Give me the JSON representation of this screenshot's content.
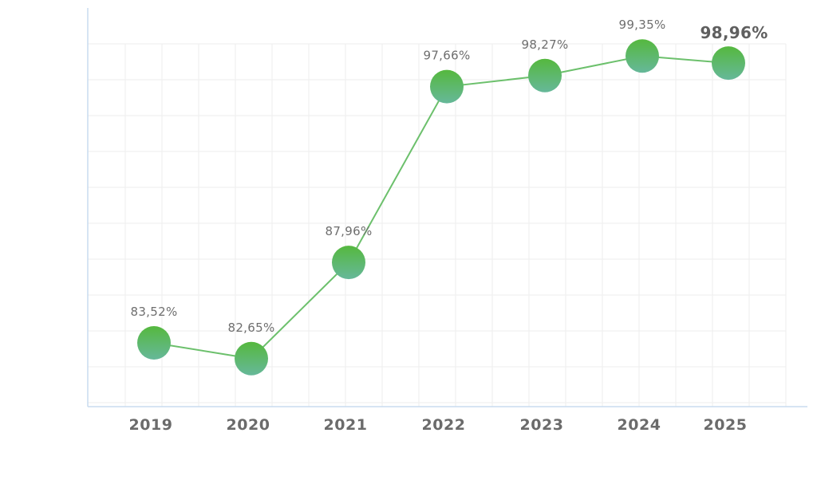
{
  "chart_data": {
    "type": "line",
    "x": [
      "2019",
      "2020",
      "2021",
      "2022",
      "2023",
      "2024",
      "2025"
    ],
    "series": [
      {
        "values": [
          83.52,
          82.65,
          87.96,
          97.66,
          98.27,
          99.35,
          98.96
        ],
        "labels": [
          "83,52%",
          "82,65%",
          "87,96%",
          "97,66%",
          "98,27%",
          "99,35%",
          "98,96%"
        ]
      }
    ],
    "highlight_index": 6,
    "title": "",
    "xlabel": "",
    "ylabel": "",
    "ylim": [
      80,
      102
    ],
    "grid": true,
    "colors": {
      "line": "#6cc06c",
      "marker_top": "#55b83e",
      "marker_bottom": "#66b89a",
      "axis": "#c9dcef",
      "grid": "#eeeeee"
    }
  }
}
